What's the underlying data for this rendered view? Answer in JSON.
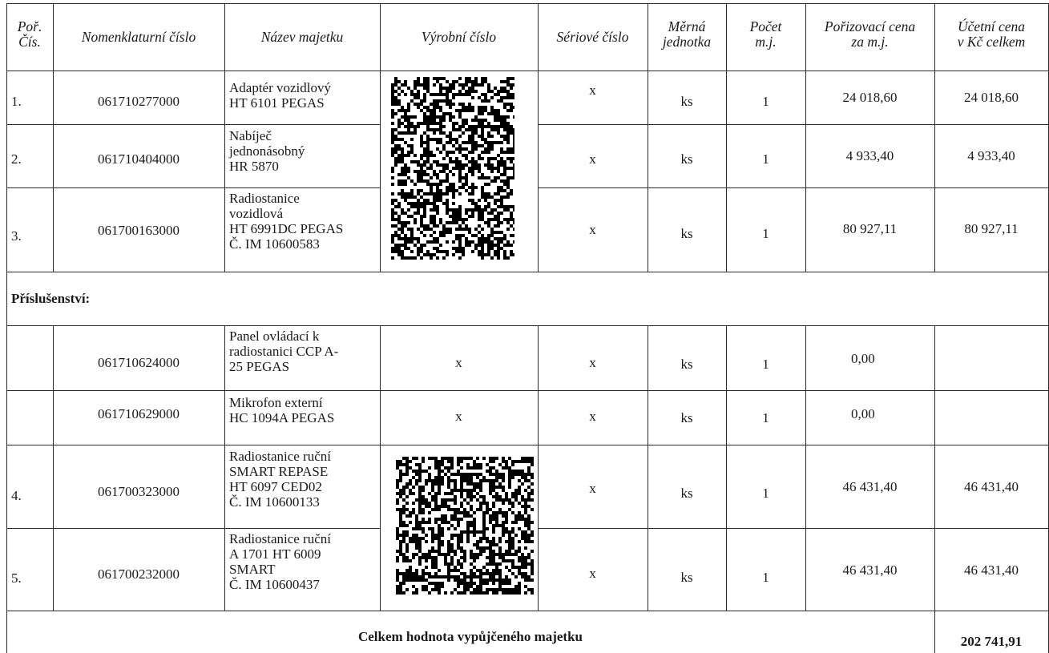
{
  "header": {
    "col_no": [
      "Poř.",
      "Čís."
    ],
    "col_nomenclature": "Nomenklaturní číslo",
    "col_name": "Název majetku",
    "col_production": "Výrobní číslo",
    "col_serial": "Sériové číslo",
    "col_unit": [
      "Měrná",
      "jednotka"
    ],
    "col_count": [
      "Počet",
      "m.j."
    ],
    "col_price": [
      "Pořizovací cena",
      "za m.j."
    ],
    "col_value": [
      "Účetní cena",
      "v Kč celkem"
    ]
  },
  "rows": [
    {
      "no": "1.",
      "nomenclature": "061710277000",
      "name": [
        "Adaptér vozidlový",
        "HT 6101 PEGAS"
      ],
      "serial": "x",
      "unit": "ks",
      "count": "1",
      "price": "24 018,60",
      "value": "24 018,60"
    },
    {
      "no": "2.",
      "nomenclature": "061710404000",
      "name": [
        "Nabíječ",
        "jednonásobný",
        "HR 5870"
      ],
      "serial": "x",
      "unit": "ks",
      "count": "1",
      "price": "4 933,40",
      "value": "4 933,40"
    },
    {
      "no": "3.",
      "nomenclature": "061700163000",
      "name": [
        "Radiostanice",
        "vozidlová",
        "HT 6991DC PEGAS",
        "Č. IM 10600583"
      ],
      "serial": "x",
      "unit": "ks",
      "count": "1",
      "price": "80 927,11",
      "value": "80 927,11"
    }
  ],
  "accessories_label": "Příslušenství:",
  "accessories": [
    {
      "no": "",
      "nomenclature": "061710624000",
      "name": [
        "Panel ovládací k",
        "radiostanici  CCP A-",
        "25 PEGAS"
      ],
      "production": "x",
      "serial": "x",
      "unit": "ks",
      "count": "1",
      "price": "0,00",
      "value": ""
    },
    {
      "no": "",
      "nomenclature": "061710629000",
      "name": [
        "Mikrofon externí",
        "HC 1094A PEGAS"
      ],
      "production": "x",
      "serial": "x",
      "unit": "ks",
      "count": "1",
      "price": "0,00",
      "value": ""
    },
    {
      "no": "4.",
      "nomenclature": "061700323000",
      "name": [
        "Radiostanice ruční",
        "SMART REPASE",
        "HT 6097 CED02",
        "Č. IM 10600133"
      ],
      "serial": "x",
      "unit": "ks",
      "count": "1",
      "price": "46 431,40",
      "value": "46 431,40"
    },
    {
      "no": "5.",
      "nomenclature": "061700232000",
      "name": [
        "Radiostanice ruční",
        "A 1701 HT 6009",
        "SMART",
        "Č. IM 10600437"
      ],
      "serial": "x",
      "unit": "ks",
      "count": "1",
      "price": "46 431,40",
      "value": "46 431,40"
    }
  ],
  "total": {
    "label": "Celkem hodnota vypůjčeného majetku",
    "value": "202 741,91"
  },
  "colors": {
    "border": "#2a2a2a",
    "redaction": "#000000"
  }
}
